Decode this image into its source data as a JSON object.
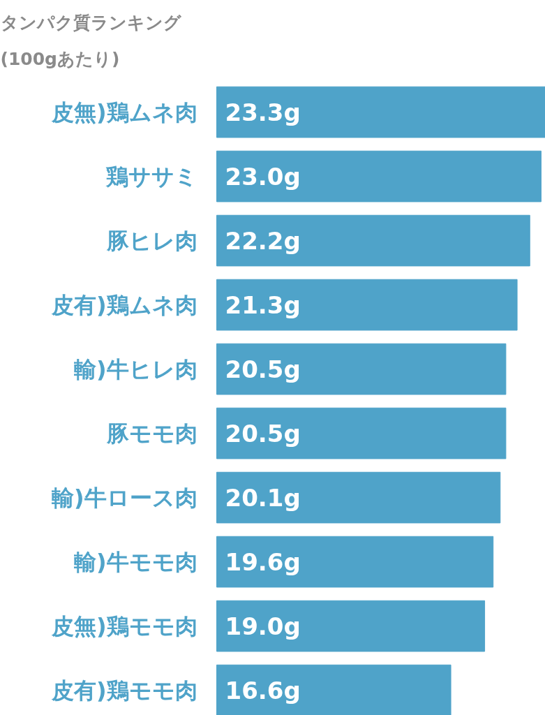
{
  "chart_data": {
    "type": "bar",
    "orientation": "horizontal",
    "title": "タンパク質ランキング\n(100gあたり)",
    "categories": [
      "皮無)鶏ムネ肉",
      "鶏ササミ",
      "豚ヒレ肉",
      "皮有)鶏ムネ肉",
      "輸)牛ヒレ肉",
      "豚モモ肉",
      "輸)牛ロース肉",
      "輸)牛モモ肉",
      "皮無)鶏モモ肉",
      "皮有)鶏モモ肉"
    ],
    "values": [
      23.3,
      23.0,
      22.2,
      21.3,
      20.5,
      20.5,
      20.1,
      19.6,
      19.0,
      16.6
    ],
    "value_labels": [
      "23.3g",
      "23.0g",
      "22.2g",
      "21.3g",
      "20.5g",
      "20.5g",
      "20.1g",
      "19.6g",
      "19.0g",
      "16.6g"
    ],
    "color": "#4fa3c9"
  }
}
